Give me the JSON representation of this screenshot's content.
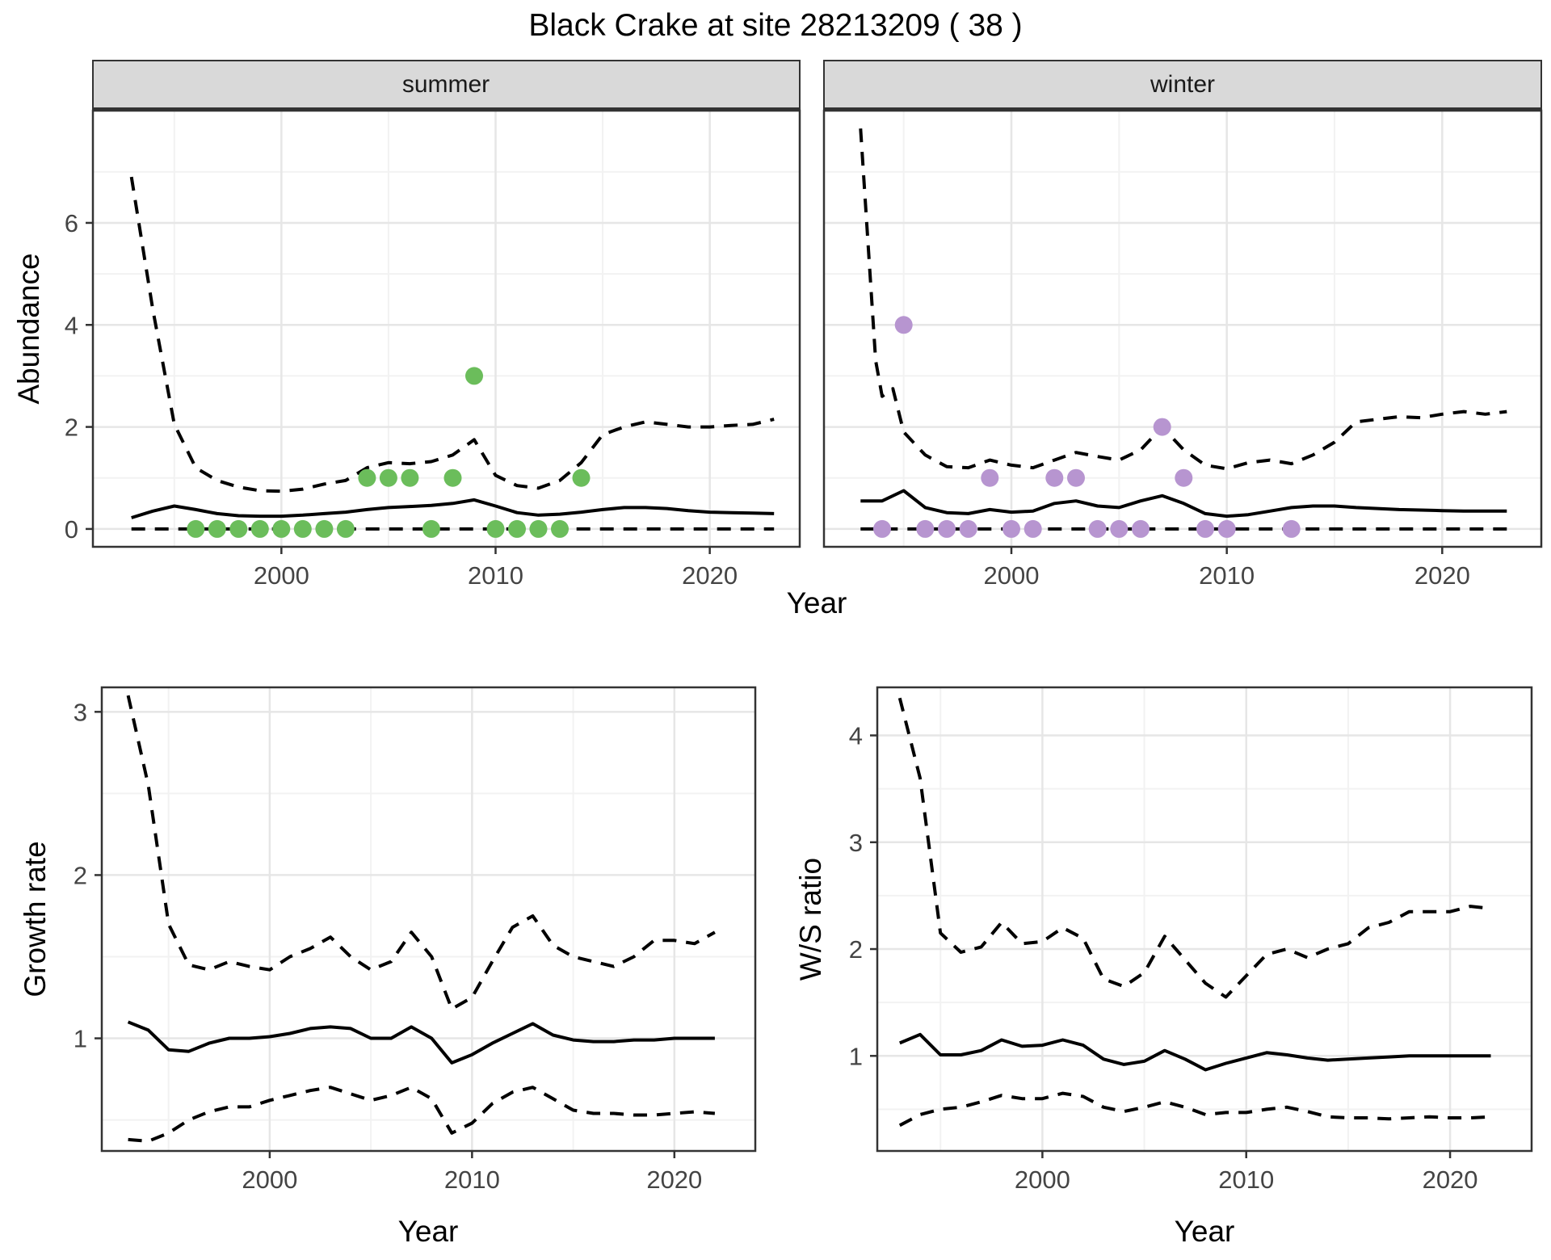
{
  "title": "Black Crake at site 28213209 ( 38 )",
  "facets": [
    {
      "label": "summer"
    },
    {
      "label": "winter"
    }
  ],
  "axis_titles": {
    "abundance": "Abundance",
    "year": "Year",
    "growth_rate": "Growth rate",
    "ws_ratio": "W/S ratio"
  },
  "colors": {
    "summer_points": "#6bbd5b",
    "winter_points": "#b795d0",
    "line": "#000000",
    "strip_bg": "#d9d9d9",
    "panel_border": "#333333",
    "grid_major": "#e6e6e6",
    "grid_minor": "#f2f2f2",
    "tick_label": "#444444",
    "tick_mark": "#333333"
  },
  "chart_data": [
    {
      "id": "abundance_summer",
      "type": "line",
      "facet": "summer",
      "ylabel": "Abundance",
      "xlabel": "Year",
      "xlim": [
        1991.2,
        2024.2
      ],
      "ylim": [
        -0.35,
        8.2
      ],
      "xticks": [
        2000,
        2010,
        2020
      ],
      "xminor": [
        1995,
        2005,
        2015
      ],
      "yticks": [
        0,
        2,
        4,
        6
      ],
      "yminor": [
        1,
        3,
        5,
        7
      ],
      "grid": true,
      "legend": "none",
      "series": [
        {
          "name": "upper_ci",
          "style": "dashed",
          "x": [
            1993,
            1994,
            1995,
            1996,
            1997,
            1998,
            1999,
            2000,
            2001,
            2002,
            2003,
            2004,
            2005,
            2006,
            2007,
            2008,
            2009,
            2010,
            2011,
            2012,
            2013,
            2014,
            2015,
            2016,
            2017,
            2018,
            2019,
            2020,
            2021,
            2022,
            2023
          ],
          "y": [
            6.9,
            4.3,
            2.05,
            1.2,
            0.95,
            0.82,
            0.75,
            0.74,
            0.78,
            0.88,
            0.95,
            1.2,
            1.3,
            1.28,
            1.32,
            1.45,
            1.75,
            1.05,
            0.85,
            0.8,
            0.95,
            1.3,
            1.85,
            2.0,
            2.1,
            2.05,
            2.0,
            2.0,
            2.03,
            2.05,
            2.15
          ]
        },
        {
          "name": "median",
          "style": "solid",
          "x": [
            1993,
            1994,
            1995,
            1996,
            1997,
            1998,
            1999,
            2000,
            2001,
            2002,
            2003,
            2004,
            2005,
            2006,
            2007,
            2008,
            2009,
            2010,
            2011,
            2012,
            2013,
            2014,
            2015,
            2016,
            2017,
            2018,
            2019,
            2020,
            2021,
            2022,
            2023
          ],
          "y": [
            0.22,
            0.35,
            0.45,
            0.38,
            0.3,
            0.26,
            0.25,
            0.25,
            0.27,
            0.3,
            0.33,
            0.38,
            0.42,
            0.44,
            0.46,
            0.5,
            0.57,
            0.45,
            0.32,
            0.27,
            0.29,
            0.33,
            0.38,
            0.42,
            0.42,
            0.4,
            0.36,
            0.33,
            0.32,
            0.31,
            0.3
          ]
        },
        {
          "name": "lower_ci",
          "style": "dashed",
          "x": [
            1993,
            2023
          ],
          "y": [
            0,
            0
          ]
        }
      ],
      "points": {
        "name": "summer-observations",
        "color": "#6bbd5b",
        "data": [
          [
            1996,
            0
          ],
          [
            1997,
            0
          ],
          [
            1998,
            0
          ],
          [
            1999,
            0
          ],
          [
            2000,
            0
          ],
          [
            2001,
            0
          ],
          [
            2002,
            0
          ],
          [
            2003,
            0
          ],
          [
            2004,
            1
          ],
          [
            2005,
            1
          ],
          [
            2006,
            1
          ],
          [
            2007,
            0
          ],
          [
            2008,
            1
          ],
          [
            2009,
            3
          ],
          [
            2010,
            0
          ],
          [
            2011,
            0
          ],
          [
            2012,
            0
          ],
          [
            2013,
            0
          ],
          [
            2014,
            1
          ]
        ]
      }
    },
    {
      "id": "abundance_winter",
      "type": "line",
      "facet": "winter",
      "ylabel": "Abundance",
      "xlabel": "Year",
      "xlim": [
        1991.3,
        2024.6
      ],
      "ylim": [
        -0.35,
        8.2
      ],
      "xticks": [
        2000,
        2010,
        2020
      ],
      "xminor": [
        1995,
        2005,
        2015
      ],
      "yticks": [
        0,
        2,
        4,
        6
      ],
      "yminor": [
        1,
        3,
        5,
        7
      ],
      "grid": true,
      "legend": "none",
      "series": [
        {
          "name": "upper_ci",
          "style": "dashed",
          "x": [
            1993,
            1993.7,
            1994,
            1994.5,
            1995,
            1996,
            1997,
            1998,
            1999,
            2000,
            2001,
            2002,
            2003,
            2004,
            2005,
            2006,
            2007,
            2008,
            2009,
            2010,
            2011,
            2012,
            2013,
            2014,
            2015,
            2016,
            2017,
            2018,
            2019,
            2020,
            2021,
            2022,
            2023
          ],
          "y": [
            7.85,
            3.3,
            2.6,
            2.75,
            1.9,
            1.45,
            1.22,
            1.2,
            1.35,
            1.25,
            1.2,
            1.35,
            1.5,
            1.42,
            1.35,
            1.55,
            2.0,
            1.55,
            1.25,
            1.18,
            1.3,
            1.35,
            1.28,
            1.45,
            1.7,
            2.1,
            2.15,
            2.2,
            2.18,
            2.25,
            2.3,
            2.25,
            2.3
          ]
        },
        {
          "name": "median",
          "style": "solid",
          "x": [
            1993,
            1994,
            1995,
            1996,
            1997,
            1998,
            1999,
            2000,
            2001,
            2002,
            2003,
            2004,
            2005,
            2006,
            2007,
            2008,
            2009,
            2010,
            2011,
            2012,
            2013,
            2014,
            2015,
            2016,
            2017,
            2018,
            2019,
            2020,
            2021,
            2022,
            2023
          ],
          "y": [
            0.55,
            0.55,
            0.75,
            0.42,
            0.32,
            0.3,
            0.38,
            0.33,
            0.35,
            0.5,
            0.55,
            0.45,
            0.42,
            0.55,
            0.65,
            0.5,
            0.3,
            0.25,
            0.28,
            0.35,
            0.42,
            0.45,
            0.45,
            0.42,
            0.4,
            0.38,
            0.37,
            0.36,
            0.35,
            0.35,
            0.35
          ]
        },
        {
          "name": "lower_ci",
          "style": "dashed",
          "x": [
            1993,
            2023
          ],
          "y": [
            0,
            0
          ]
        }
      ],
      "points": {
        "name": "winter-observations",
        "color": "#b795d0",
        "data": [
          [
            1994,
            0
          ],
          [
            1995,
            4
          ],
          [
            1996,
            0
          ],
          [
            1997,
            0
          ],
          [
            1998,
            0
          ],
          [
            1999,
            1
          ],
          [
            2000,
            0
          ],
          [
            2001,
            0
          ],
          [
            2002,
            1
          ],
          [
            2003,
            1
          ],
          [
            2004,
            0
          ],
          [
            2005,
            0
          ],
          [
            2006,
            0
          ],
          [
            2007,
            2
          ],
          [
            2008,
            1
          ],
          [
            2009,
            0
          ],
          [
            2010,
            0
          ],
          [
            2013,
            0
          ]
        ]
      }
    },
    {
      "id": "growth_rate",
      "type": "line",
      "ylabel": "Growth rate",
      "xlabel": "Year",
      "xlim": [
        1991.7,
        2024.0
      ],
      "ylim": [
        0.31,
        3.15
      ],
      "xticks": [
        2000,
        2010,
        2020
      ],
      "xminor": [
        1995,
        2005,
        2015
      ],
      "yticks": [
        1,
        2,
        3
      ],
      "yminor": [
        0.5,
        1.5,
        2.5
      ],
      "grid": true,
      "legend": "none",
      "series": [
        {
          "name": "upper_ci",
          "style": "dashed",
          "x": [
            1993,
            1994,
            1995,
            1996,
            1997,
            1998,
            1999,
            2000,
            2001,
            2002,
            2003,
            2004,
            2005,
            2006,
            2007,
            2008,
            2009,
            2010,
            2011,
            2012,
            2013,
            2014,
            2015,
            2016,
            2017,
            2018,
            2019,
            2020,
            2021,
            2022
          ],
          "y": [
            3.1,
            2.55,
            1.7,
            1.45,
            1.42,
            1.47,
            1.44,
            1.42,
            1.5,
            1.55,
            1.62,
            1.5,
            1.42,
            1.47,
            1.65,
            1.5,
            1.18,
            1.25,
            1.47,
            1.68,
            1.75,
            1.57,
            1.5,
            1.47,
            1.44,
            1.5,
            1.6,
            1.6,
            1.58,
            1.65
          ]
        },
        {
          "name": "median",
          "style": "solid",
          "x": [
            1993,
            1994,
            1995,
            1996,
            1997,
            1998,
            1999,
            2000,
            2001,
            2002,
            2003,
            2004,
            2005,
            2006,
            2007,
            2008,
            2009,
            2010,
            2011,
            2012,
            2013,
            2014,
            2015,
            2016,
            2017,
            2018,
            2019,
            2020,
            2021,
            2022
          ],
          "y": [
            1.1,
            1.05,
            0.93,
            0.92,
            0.97,
            1.0,
            1.0,
            1.01,
            1.03,
            1.06,
            1.07,
            1.06,
            1.0,
            1.0,
            1.07,
            1.0,
            0.85,
            0.9,
            0.97,
            1.03,
            1.09,
            1.02,
            0.99,
            0.98,
            0.98,
            0.99,
            0.99,
            1.0,
            1.0,
            1.0
          ]
        },
        {
          "name": "lower_ci",
          "style": "dashed",
          "x": [
            1993,
            1994,
            1995,
            1996,
            1997,
            1998,
            1999,
            2000,
            2001,
            2002,
            2003,
            2004,
            2005,
            2006,
            2007,
            2008,
            2009,
            2010,
            2011,
            2012,
            2013,
            2014,
            2015,
            2016,
            2017,
            2018,
            2019,
            2020,
            2021,
            2022
          ],
          "y": [
            0.38,
            0.37,
            0.42,
            0.5,
            0.55,
            0.58,
            0.58,
            0.62,
            0.65,
            0.68,
            0.7,
            0.66,
            0.62,
            0.65,
            0.7,
            0.63,
            0.42,
            0.48,
            0.6,
            0.67,
            0.7,
            0.63,
            0.56,
            0.54,
            0.54,
            0.53,
            0.53,
            0.54,
            0.55,
            0.54
          ]
        }
      ],
      "points": null
    },
    {
      "id": "ws_ratio",
      "type": "line",
      "ylabel": "W/S ratio",
      "xlabel": "Year",
      "xlim": [
        1991.9,
        2024.0
      ],
      "ylim": [
        0.11,
        4.45
      ],
      "xticks": [
        2000,
        2010,
        2020
      ],
      "xminor": [
        1995,
        2005,
        2015
      ],
      "yticks": [
        1,
        2,
        3,
        4
      ],
      "yminor": [
        0.5,
        1.5,
        2.5,
        3.5
      ],
      "grid": true,
      "legend": "none",
      "series": [
        {
          "name": "upper_ci",
          "style": "dashed",
          "x": [
            1993,
            1994,
            1995,
            1996,
            1997,
            1998,
            1999,
            2000,
            2001,
            2002,
            2003,
            2004,
            2005,
            2006,
            2007,
            2008,
            2009,
            2010,
            2011,
            2012,
            2013,
            2014,
            2015,
            2016,
            2017,
            2018,
            2019,
            2020,
            2021,
            2022
          ],
          "y": [
            4.35,
            3.6,
            2.15,
            1.97,
            2.02,
            2.25,
            2.05,
            2.07,
            2.2,
            2.1,
            1.72,
            1.65,
            1.78,
            2.12,
            1.9,
            1.68,
            1.55,
            1.75,
            1.95,
            2.0,
            1.92,
            2.0,
            2.05,
            2.2,
            2.25,
            2.35,
            2.35,
            2.35,
            2.4,
            2.38
          ]
        },
        {
          "name": "median",
          "style": "solid",
          "x": [
            1993,
            1994,
            1995,
            1996,
            1997,
            1998,
            1999,
            2000,
            2001,
            2002,
            2003,
            2004,
            2005,
            2006,
            2007,
            2008,
            2009,
            2010,
            2011,
            2012,
            2013,
            2014,
            2015,
            2016,
            2017,
            2018,
            2019,
            2020,
            2021,
            2022
          ],
          "y": [
            1.12,
            1.2,
            1.01,
            1.01,
            1.05,
            1.15,
            1.09,
            1.1,
            1.15,
            1.1,
            0.97,
            0.92,
            0.95,
            1.05,
            0.97,
            0.87,
            0.93,
            0.98,
            1.03,
            1.01,
            0.98,
            0.96,
            0.97,
            0.98,
            0.99,
            1.0,
            1.0,
            1.0,
            1.0,
            1.0
          ]
        },
        {
          "name": "lower_ci",
          "style": "dashed",
          "x": [
            1993,
            1994,
            1995,
            1996,
            1997,
            1998,
            1999,
            2000,
            2001,
            2002,
            2003,
            2004,
            2005,
            2006,
            2007,
            2008,
            2009,
            2010,
            2011,
            2012,
            2013,
            2014,
            2015,
            2016,
            2017,
            2018,
            2019,
            2020,
            2021,
            2022
          ],
          "y": [
            0.35,
            0.45,
            0.5,
            0.52,
            0.57,
            0.63,
            0.6,
            0.6,
            0.65,
            0.62,
            0.52,
            0.48,
            0.52,
            0.57,
            0.52,
            0.45,
            0.47,
            0.47,
            0.5,
            0.52,
            0.48,
            0.43,
            0.42,
            0.42,
            0.41,
            0.42,
            0.43,
            0.42,
            0.42,
            0.43
          ]
        }
      ],
      "points": null
    }
  ]
}
